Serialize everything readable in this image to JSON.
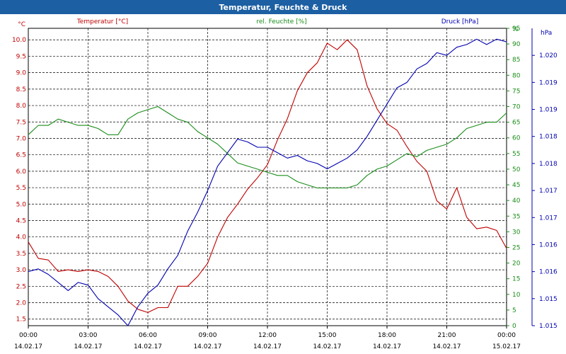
{
  "window": {
    "title": "Temperatur, Feuchte & Druck"
  },
  "colors": {
    "temperature": "#c00000",
    "humidity": "#1a8c1a",
    "pressure": "#0000b0",
    "title_bar": "#1c5fa3"
  },
  "chart_data": {
    "type": "line",
    "title": "Temperatur, Feuchte & Druck",
    "grid": true,
    "x_ticks": [
      {
        "time": "00:00",
        "date": "14.02.17"
      },
      {
        "time": "03:00",
        "date": "14.02.17"
      },
      {
        "time": "06:00",
        "date": "14.02.17"
      },
      {
        "time": "09:00",
        "date": "14.02.17"
      },
      {
        "time": "12:00",
        "date": "14.02.17"
      },
      {
        "time": "15:00",
        "date": "14.02.17"
      },
      {
        "time": "18:00",
        "date": "14.02.17"
      },
      {
        "time": "21:00",
        "date": "14.02.17"
      },
      {
        "time": "00:00",
        "date": "15.02.17"
      }
    ],
    "x_hours_range": [
      0,
      24
    ],
    "axes": {
      "temperature": {
        "label": "Temperatur [°C]",
        "unit": "°C",
        "range": [
          1.3,
          10.35
        ],
        "ticks": [
          "1.5",
          "2.0",
          "2.5",
          "3.0",
          "3.5",
          "4.0",
          "4.5",
          "5.0",
          "5.5",
          "6.0",
          "6.5",
          "7.0",
          "7.5",
          "8.0",
          "8.5",
          "9.0",
          "9.5",
          "10.0"
        ]
      },
      "humidity": {
        "label": "rel. Feuchte [%]",
        "unit": "%",
        "range": [
          0,
          95
        ],
        "ticks": [
          "0",
          "5",
          "10",
          "15",
          "20",
          "25",
          "30",
          "35",
          "40",
          "45",
          "50",
          "55",
          "60",
          "65",
          "70",
          "75",
          "80",
          "85",
          "90",
          "95"
        ]
      },
      "pressure": {
        "label": "Druck [hPa]",
        "unit": "hPa",
        "range": [
          1015.0,
          1020.5
        ],
        "ticks": [
          {
            "v": 1015.0,
            "t": "1.015"
          },
          {
            "v": 1015.5,
            "t": "1.015"
          },
          {
            "v": 1016.0,
            "t": "1.016"
          },
          {
            "v": 1016.5,
            "t": "1.016"
          },
          {
            "v": 1017.0,
            "t": "1.017"
          },
          {
            "v": 1017.5,
            "t": "1.017"
          },
          {
            "v": 1018.0,
            "t": "1.018"
          },
          {
            "v": 1018.5,
            "t": "1.018"
          },
          {
            "v": 1019.0,
            "t": "1.019"
          },
          {
            "v": 1019.5,
            "t": "1.019"
          },
          {
            "v": 1020.0,
            "t": "1.020"
          }
        ]
      }
    },
    "series": [
      {
        "name": "Temperatur [°C]",
        "axis": "temperature",
        "x": [
          0,
          0.5,
          1,
          1.5,
          2,
          2.5,
          3,
          3.5,
          4,
          4.5,
          5,
          5.5,
          6,
          6.5,
          7,
          7.5,
          8,
          8.5,
          9,
          9.5,
          10,
          10.5,
          11,
          11.5,
          12,
          12.5,
          13,
          13.5,
          14,
          14.5,
          15,
          15.5,
          16,
          16.5,
          17,
          17.5,
          18,
          18.5,
          19,
          19.5,
          20,
          20.5,
          21,
          21.5,
          22,
          22.5,
          23,
          23.5,
          24
        ],
        "y": [
          3.85,
          3.35,
          3.3,
          2.95,
          3.0,
          2.95,
          3.0,
          2.95,
          2.8,
          2.5,
          2.05,
          1.8,
          1.7,
          1.85,
          1.85,
          2.5,
          2.5,
          2.8,
          3.2,
          4.0,
          4.6,
          5.0,
          5.45,
          5.8,
          6.2,
          6.95,
          7.6,
          8.45,
          9.0,
          9.3,
          9.9,
          9.7,
          10.0,
          9.7,
          8.6,
          7.9,
          7.45,
          7.25,
          6.75,
          6.3,
          6.0,
          5.1,
          4.85,
          5.5,
          4.6,
          4.25,
          4.3,
          4.2,
          3.65
        ]
      },
      {
        "name": "rel. Feuchte [%]",
        "axis": "humidity",
        "x": [
          0,
          0.5,
          1,
          1.5,
          2,
          2.5,
          3,
          3.5,
          4,
          4.5,
          5,
          5.5,
          6,
          6.5,
          7,
          7.5,
          8,
          8.5,
          9,
          9.5,
          10,
          10.5,
          11,
          11.5,
          12,
          12.5,
          13,
          13.5,
          14,
          14.5,
          15,
          15.5,
          16,
          16.5,
          17,
          17.5,
          18,
          18.5,
          19,
          19.5,
          20,
          20.5,
          21,
          21.5,
          22,
          22.5,
          23,
          23.5,
          24
        ],
        "y": [
          61,
          64,
          64,
          66,
          65,
          64,
          64,
          63,
          61,
          61,
          66,
          68,
          69,
          70,
          68,
          66,
          65,
          62,
          60,
          58,
          55,
          52,
          51,
          50,
          49,
          48,
          48,
          46,
          45,
          44,
          44,
          44,
          44,
          45,
          48,
          50,
          51,
          53,
          55,
          54,
          56,
          57,
          58,
          60,
          63,
          64,
          65,
          65,
          68
        ]
      },
      {
        "name": "Druck [hPa]",
        "axis": "pressure",
        "x": [
          0,
          0.5,
          1,
          1.5,
          2,
          2.5,
          3,
          3.5,
          4,
          4.5,
          5,
          5.5,
          6,
          6.5,
          7,
          7.5,
          8,
          8.5,
          9,
          9.5,
          10,
          10.5,
          11,
          11.5,
          12,
          12.5,
          13,
          13.5,
          14,
          14.5,
          15,
          15.5,
          16,
          16.5,
          17,
          17.5,
          18,
          18.5,
          19,
          19.5,
          20,
          20.5,
          21,
          21.5,
          22,
          22.5,
          23,
          23.5,
          24
        ],
        "y": [
          1016.0,
          1016.05,
          1015.95,
          1015.8,
          1015.65,
          1015.8,
          1015.75,
          1015.5,
          1015.35,
          1015.2,
          1015.0,
          1015.35,
          1015.6,
          1015.75,
          1016.05,
          1016.3,
          1016.75,
          1017.1,
          1017.5,
          1017.95,
          1018.2,
          1018.45,
          1018.4,
          1018.3,
          1018.3,
          1018.2,
          1018.1,
          1018.15,
          1018.05,
          1018.0,
          1017.9,
          1018.0,
          1018.1,
          1018.25,
          1018.5,
          1018.8,
          1019.1,
          1019.4,
          1019.5,
          1019.75,
          1019.85,
          1020.05,
          1020.0,
          1020.15,
          1020.2,
          1020.3,
          1020.2,
          1020.3,
          1020.25
        ]
      }
    ]
  }
}
